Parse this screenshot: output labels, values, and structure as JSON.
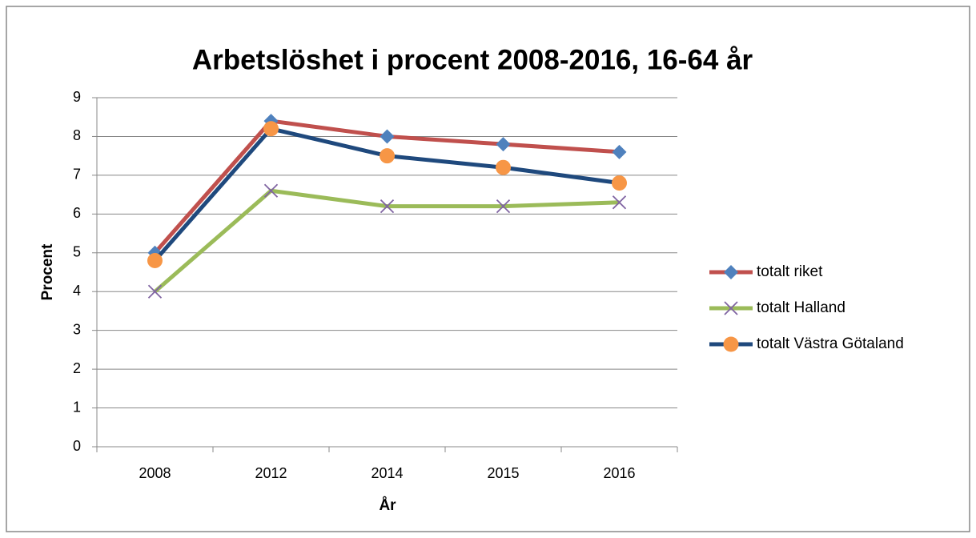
{
  "chart_data": {
    "type": "line",
    "title": "Arbetslöshet i procent 2008-2016,  16-64 år",
    "x_label": "År",
    "y_label": "Procent",
    "categories": [
      "2008",
      "2012",
      "2014",
      "2015",
      "2016"
    ],
    "series": [
      {
        "name": "totalt riket",
        "color": "#c0504d",
        "marker": "diamond",
        "marker_color": "#4f81bd",
        "values": [
          5.0,
          8.4,
          8.0,
          7.8,
          7.6
        ]
      },
      {
        "name": "totalt Halland",
        "color": "#9bbb59",
        "marker": "x",
        "marker_color": "#8064a2",
        "values": [
          4.0,
          6.6,
          6.2,
          6.2,
          6.3
        ]
      },
      {
        "name": "totalt Västra Götaland",
        "color": "#1f497d",
        "marker": "circle",
        "marker_color": "#f79646",
        "values": [
          4.8,
          8.2,
          7.5,
          7.2,
          6.8
        ]
      }
    ],
    "ylim": [
      0,
      9
    ],
    "yticks": [
      0,
      1,
      2,
      3,
      4,
      5,
      6,
      7,
      8,
      9
    ],
    "grid": true,
    "legend": "right"
  }
}
